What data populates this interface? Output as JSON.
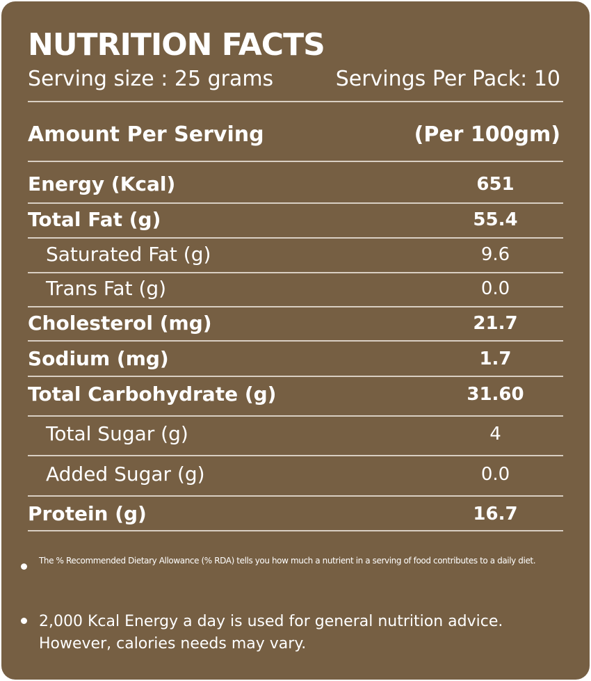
{
  "header": {
    "title": "NUTRITION FACTS",
    "serving_size": "Serving size : 25 grams",
    "servings_per_pack": "Servings Per Pack: 10"
  },
  "table": {
    "amount_label": "Amount Per Serving",
    "per_label": "(Per 100gm)",
    "rows": [
      {
        "name": "Energy (Kcal)",
        "value": "651"
      },
      {
        "name": "Total Fat (g)",
        "value": "55.4"
      },
      {
        "name": "Saturated Fat (g)",
        "value": "9.6"
      },
      {
        "name": "Trans Fat (g)",
        "value": "0.0"
      },
      {
        "name": "Cholesterol (mg)",
        "value": "21.7"
      },
      {
        "name": "Sodium  (mg)",
        "value": "1.7"
      },
      {
        "name": "Total Carbohydrate (g)",
        "value": "31.60"
      },
      {
        "name": "Total Sugar (g)",
        "value": "4"
      },
      {
        "name": "Added Sugar (g)",
        "value": "0.0"
      },
      {
        "name": "Protein (g)",
        "value": "16.7"
      }
    ]
  },
  "notes": {
    "rda": "The % Recommended Dietary Allowance (% RDA) tells you how much a nutrient in a serving of food contributes to a daily diet.",
    "calories": "2,000 Kcal Energy a day is used for general nutrition advice. However, calories needs may vary."
  },
  "colors": {
    "background": "#765f43",
    "text": "#ffffff",
    "rule": "#d9cfc3"
  }
}
